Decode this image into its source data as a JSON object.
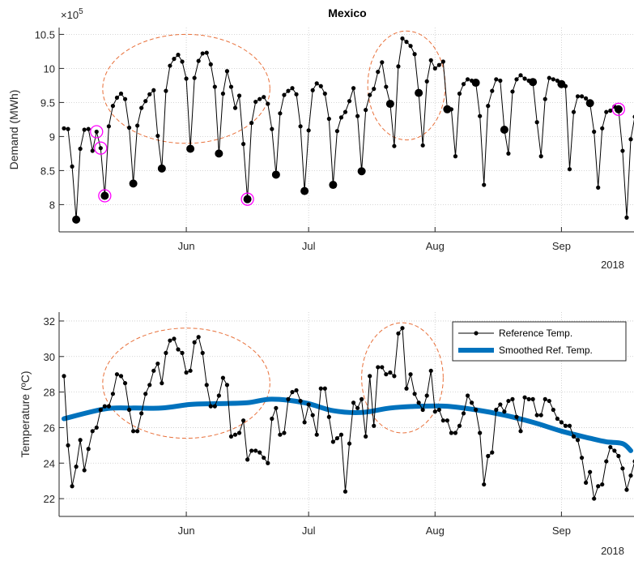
{
  "chart_data": [
    {
      "type": "line",
      "title": "Mexico",
      "ylabel": "Demand (MWh)",
      "exponent_label": "×10",
      "exponent_power": "5",
      "year_label": "2018",
      "ylim": [
        7.6,
        10.6
      ],
      "y_ticks": [
        8,
        8.5,
        9,
        9.5,
        10,
        10.5
      ],
      "y_tick_labels": [
        "8",
        "8.5",
        "9",
        "9.5",
        "10",
        "10.5"
      ],
      "x_ticks": [
        "Jun",
        "Jul",
        "Aug",
        "Sep"
      ],
      "x_range": [
        "2018-05-02",
        "2018-09-18"
      ],
      "grid": true,
      "series": [
        {
          "start": "2018-05-02",
          "values": [
            9.12,
            9.11,
            8.56,
            7.78,
            8.82,
            9.1,
            9.11,
            8.79,
            9.07,
            8.83,
            8.13,
            9.15,
            9.45,
            9.57,
            9.63,
            9.55,
            9.13,
            8.31,
            9.16,
            9.42,
            9.52,
            9.62,
            9.68,
            9.01,
            8.53,
            9.67,
            10.04,
            10.14,
            10.2,
            10.1,
            9.85,
            8.82,
            9.86,
            10.11,
            10.22,
            10.23,
            10.06,
            9.73,
            8.75,
            9.63,
            9.96,
            9.73,
            9.42,
            9.6,
            8.89,
            8.08,
            9.2,
            9.51,
            9.55,
            9.58,
            9.48,
            9.11,
            8.44,
            9.34,
            9.61,
            9.67,
            9.71,
            9.62,
            9.15,
            8.2,
            9.09,
            9.68,
            9.78,
            9.74,
            9.63,
            9.26,
            8.29,
            9.08,
            9.28,
            9.36,
            9.52,
            9.71,
            9.3,
            8.49,
            9.39,
            9.61,
            9.7,
            9.95,
            10.09,
            9.73,
            9.48,
            8.86,
            10.03,
            10.44,
            10.39,
            10.33,
            10.21,
            9.64,
            8.87,
            9.81,
            10.12,
            10.0,
            10.05,
            10.1,
            9.4,
            9.4,
            8.71,
            9.63,
            9.77,
            9.84,
            9.82,
            9.79,
            9.3,
            8.29,
            9.45,
            9.67,
            9.84,
            9.82,
            9.1,
            8.75,
            9.66,
            9.84,
            9.9,
            9.85,
            9.82,
            9.8,
            9.21,
            8.71,
            9.55,
            9.86,
            9.84,
            9.82,
            9.77,
            9.74,
            8.52,
            9.36,
            9.59,
            9.59,
            9.56,
            9.49,
            9.07,
            8.25,
            9.12,
            9.36,
            9.38,
            9.44,
            9.4,
            8.79,
            7.81,
            8.96,
            9.29
          ]
        }
      ],
      "large_markers": [
        "2018-05-05",
        "2018-05-12",
        "2018-05-19",
        "2018-05-26",
        "2018-06-02",
        "2018-06-09",
        "2018-06-16",
        "2018-06-23",
        "2018-06-30",
        "2018-07-07",
        "2018-07-14",
        "2018-07-21",
        "2018-07-28",
        "2018-08-04",
        "2018-08-11",
        "2018-08-18",
        "2018-08-25",
        "2018-09-01",
        "2018-09-08",
        "2018-09-15"
      ],
      "highlighted_points": [
        "2018-05-10",
        "2018-05-11",
        "2018-05-12",
        "2018-06-16",
        "2018-09-15"
      ],
      "highlight_color": "#ff00ff",
      "dashed_regions": [
        {
          "center": "2018-06-01",
          "y": 9.7,
          "rx_days": 20.5,
          "ry": 0.8
        },
        {
          "center": "2018-07-25",
          "y": 9.75,
          "rx_days": 9.5,
          "ry": 0.8
        }
      ],
      "region_color": "#e8703a"
    },
    {
      "type": "line",
      "ylabel": "Temperature (ºC)",
      "year_label": "2018",
      "ylim": [
        21,
        32.5
      ],
      "y_ticks": [
        22,
        24,
        26,
        28,
        30,
        32
      ],
      "y_tick_labels": [
        "22",
        "24",
        "26",
        "28",
        "30",
        "32"
      ],
      "x_ticks": [
        "Jun",
        "Jul",
        "Aug",
        "Sep"
      ],
      "x_range": [
        "2018-05-02",
        "2018-09-18"
      ],
      "grid": true,
      "legend": "top-right",
      "series": [
        {
          "name": "Reference Temp.",
          "start": "2018-05-02",
          "color": "#000000",
          "values": [
            28.9,
            25.0,
            22.7,
            23.8,
            25.3,
            23.6,
            24.8,
            25.8,
            26.0,
            27.0,
            27.2,
            27.2,
            27.9,
            29.0,
            28.9,
            28.5,
            27.0,
            25.8,
            25.8,
            26.8,
            27.9,
            28.4,
            29.2,
            29.6,
            28.5,
            30.2,
            30.9,
            31.0,
            30.4,
            30.2,
            29.1,
            29.2,
            30.8,
            31.1,
            30.2,
            28.4,
            27.2,
            27.2,
            27.8,
            28.8,
            28.4,
            25.5,
            25.6,
            25.7,
            26.4,
            24.2,
            24.7,
            24.7,
            24.6,
            24.3,
            24.0,
            26.5,
            27.1,
            25.6,
            25.7,
            27.6,
            28.0,
            28.1,
            27.5,
            26.3,
            27.3,
            26.7,
            25.6,
            28.2,
            28.2,
            26.6,
            25.2,
            25.4,
            25.6,
            22.4,
            25.1,
            27.4,
            27.1,
            27.6,
            25.5,
            28.9,
            26.1,
            29.4,
            29.4,
            29.0,
            29.1,
            28.9,
            31.3,
            31.6,
            28.2,
            29.0,
            27.9,
            27.4,
            27.0,
            27.8,
            29.2,
            26.9,
            27.0,
            26.4,
            26.4,
            25.7,
            25.7,
            26.1,
            26.8,
            27.8,
            27.4,
            27.0,
            25.7,
            22.8,
            24.4,
            24.6,
            27.0,
            27.3,
            26.9,
            27.5,
            27.6,
            26.6,
            25.8,
            27.7,
            27.6,
            27.6,
            26.7,
            26.7,
            27.6,
            27.5,
            27.0,
            26.5,
            26.3,
            26.1,
            26.1,
            25.5,
            25.3,
            24.3,
            22.9,
            23.5,
            22.0,
            22.7,
            22.8,
            24.1,
            24.9,
            24.7,
            24.4,
            23.7,
            22.5,
            23.3,
            24.1,
            24.9
          ]
        },
        {
          "name": "Smoothed Ref. Temp.",
          "color": "#0072bd",
          "knots_dates": [
            "2018-05-02",
            "2018-05-12",
            "2018-05-19",
            "2018-05-26",
            "2018-06-02",
            "2018-06-09",
            "2018-06-16",
            "2018-06-22",
            "2018-06-30",
            "2018-07-07",
            "2018-07-14",
            "2018-07-21",
            "2018-07-28",
            "2018-08-04",
            "2018-08-11",
            "2018-08-18",
            "2018-08-25",
            "2018-09-01",
            "2018-09-08",
            "2018-09-12",
            "2018-09-16",
            "2018-09-18"
          ],
          "knots_values": [
            26.5,
            27.05,
            27.1,
            27.1,
            27.3,
            27.35,
            27.4,
            27.6,
            27.4,
            26.95,
            26.85,
            27.1,
            27.2,
            27.2,
            27.0,
            26.7,
            26.3,
            25.8,
            25.4,
            25.2,
            25.1,
            24.7
          ]
        }
      ],
      "dashed_regions": [
        {
          "center": "2018-06-01",
          "y": 28.5,
          "rx_days": 20.5,
          "ry": 3.1
        },
        {
          "center": "2018-07-24",
          "y": 28.8,
          "rx_days": 10,
          "ry": 3.1
        }
      ],
      "region_color": "#e8703a"
    }
  ]
}
